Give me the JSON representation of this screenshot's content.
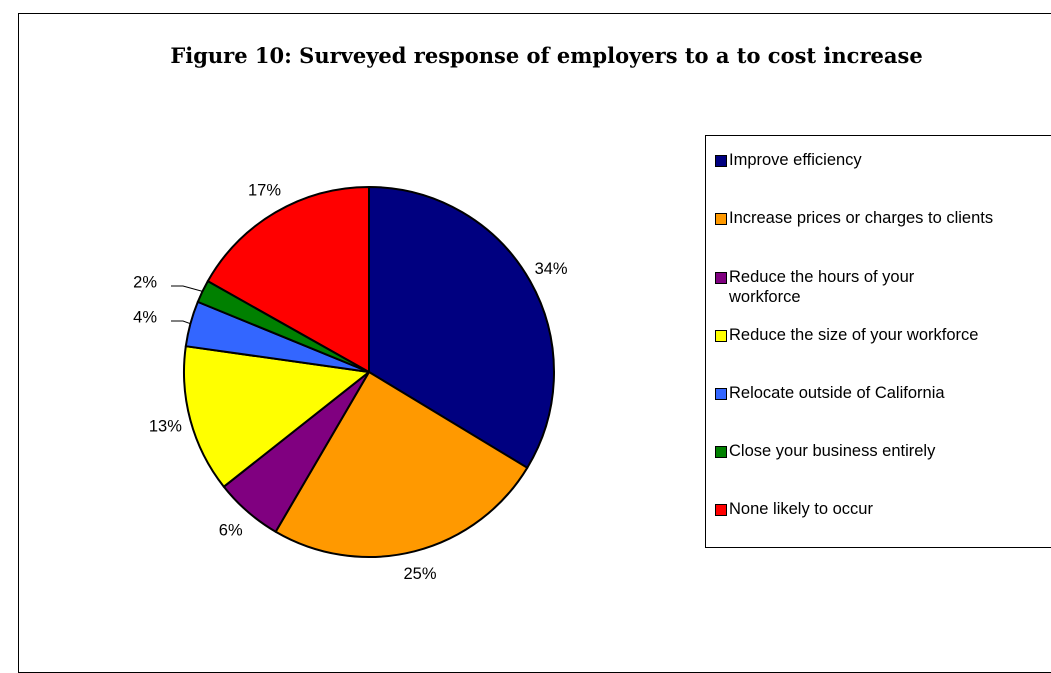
{
  "chart_data": {
    "type": "pie",
    "title": "Figure 10:  Surveyed response of employers to a to cost increase",
    "legend_position": "right",
    "slices": [
      {
        "label": "Improve efficiency",
        "value": 34,
        "value_label": "34%",
        "color": "#000080"
      },
      {
        "label": "Increase prices or charges to clients",
        "value": 25,
        "value_label": "25%",
        "color": "#FF9900"
      },
      {
        "label": "Reduce the hours of your workforce",
        "value": 6,
        "value_label": "6%",
        "color": "#800080"
      },
      {
        "label": "Reduce the size of your workforce",
        "value": 13,
        "value_label": "13%",
        "color": "#FFFF00"
      },
      {
        "label": "Relocate outside of California",
        "value": 4,
        "value_label": "4%",
        "color": "#3366FF"
      },
      {
        "label": "Close your business entirely",
        "value": 2,
        "value_label": "2%",
        "color": "#008000"
      },
      {
        "label": "None likely to occur",
        "value": 17,
        "value_label": "17%",
        "color": "#FF0000"
      }
    ]
  }
}
